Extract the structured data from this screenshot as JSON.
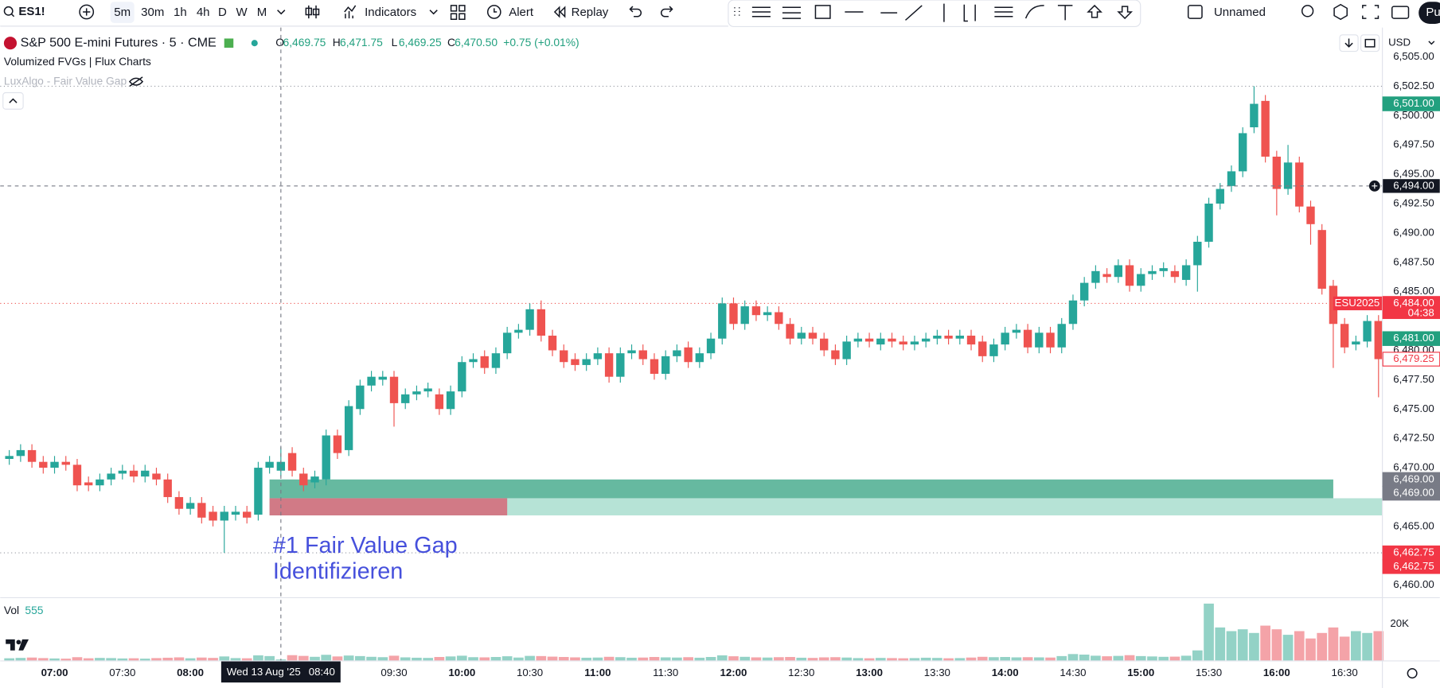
{
  "toolbar": {
    "symbol": "ES1!",
    "intervals": [
      "5m",
      "30m",
      "1h",
      "4h",
      "D",
      "W",
      "M"
    ],
    "indicators": "Indicators",
    "alert": "Alert",
    "replay": "Replay",
    "layout": "Unnamed",
    "publish": "Pu"
  },
  "legend": {
    "title": "S&P 500 E-mini Futures · 5 · CME",
    "ohlc": [
      {
        "key": "O",
        "value": "6,469.75"
      },
      {
        "key": "H",
        "value": "6,471.75"
      },
      {
        "key": "L",
        "value": "6,469.25"
      },
      {
        "key": "C",
        "value": "6,470.50"
      }
    ],
    "change": "+0.75 (+0.01%)",
    "indicators": [
      "Volumized FVGs | Flux Charts",
      "LuxAlgo - Fair Value Gap"
    ]
  },
  "currency": "USD",
  "chart_data": {
    "type": "candlestick",
    "up_color": "#26a69a",
    "down_color": "#ef5350",
    "grid": false,
    "xlim": [
      -0.8,
      121.3
    ],
    "xticks": [
      {
        "value": 4,
        "label": "07:00",
        "major": true
      },
      {
        "value": 10,
        "label": "07:30"
      },
      {
        "value": 16,
        "label": "08:00",
        "major": true
      },
      {
        "value": 34,
        "label": "09:30"
      },
      {
        "value": 40,
        "label": "10:00",
        "major": true
      },
      {
        "value": 46,
        "label": "10:30"
      },
      {
        "value": 52,
        "label": "11:00",
        "major": true
      },
      {
        "value": 58,
        "label": "11:30"
      },
      {
        "value": 64,
        "label": "12:00",
        "major": true
      },
      {
        "value": 70,
        "label": "12:30"
      },
      {
        "value": 76,
        "label": "13:00",
        "major": true
      },
      {
        "value": 82,
        "label": "13:30"
      },
      {
        "value": 88,
        "label": "14:00",
        "major": true
      },
      {
        "value": 94,
        "label": "14:30"
      },
      {
        "value": 100,
        "label": "15:00",
        "major": true
      },
      {
        "value": 106,
        "label": "15:30"
      },
      {
        "value": 112,
        "label": "16:00",
        "major": true
      },
      {
        "value": 118,
        "label": "16:30"
      }
    ],
    "ylim": [
      6459.05,
      6507.5
    ],
    "yticks": [
      {
        "value": 6460,
        "label": "6,460.00"
      },
      {
        "value": 6465,
        "label": "6,465.00"
      },
      {
        "value": 6470,
        "label": "6,470.00"
      },
      {
        "value": 6472.5,
        "label": "6,472.50"
      },
      {
        "value": 6475,
        "label": "6,475.00"
      },
      {
        "value": 6477.5,
        "label": "6,477.50"
      },
      {
        "value": 6480,
        "label": "6,480.00"
      },
      {
        "value": 6485,
        "label": "6,485.00"
      },
      {
        "value": 6487.5,
        "label": "6,487.50"
      },
      {
        "value": 6490,
        "label": "6,490.00"
      },
      {
        "value": 6492.5,
        "label": "6,492.50"
      },
      {
        "value": 6495,
        "label": "6,495.00"
      },
      {
        "value": 6497.5,
        "label": "6,497.50"
      },
      {
        "value": 6500,
        "label": "6,500.00"
      },
      {
        "value": 6502.5,
        "label": "6,502.50"
      },
      {
        "value": 6505,
        "label": "6,505.00"
      }
    ],
    "open": [
      6470.75,
      6471,
      6471.5,
      6470.5,
      6470,
      6470.5,
      6470.25,
      6468.75,
      6468.5,
      6469,
      6469.5,
      6469.75,
      6469.25,
      6469.5,
      6469,
      6467.5,
      6466.5,
      6467,
      6466.25,
      6465.5,
      6466,
      6466.25,
      6466,
      6470,
      6469.75,
      6471.25,
      6469.5,
      6468.75,
      6469,
      6472.75,
      6471.5,
      6475,
      6477,
      6477.5,
      6477.75,
      6475.5,
      6476.25,
      6476.5,
      6476.25,
      6475,
      6476.5,
      6479,
      6479.5,
      6478.5,
      6479.75,
      6481.5,
      6481.75,
      6483.5,
      6481.25,
      6480,
      6479.25,
      6478.75,
      6479.25,
      6479.75,
      6477.75,
      6479.75,
      6480,
      6479.25,
      6478,
      6479.5,
      6480.25,
      6479,
      6479.75,
      6481,
      6484,
      6482.25,
      6483.75,
      6483,
      6483.25,
      6482.25,
      6481,
      6481.5,
      6481,
      6480,
      6479.25,
      6480.75,
      6481,
      6480.5,
      6481,
      6480.75,
      6480.5,
      6480.75,
      6481,
      6481.25,
      6481,
      6481.25,
      6480.75,
      6479.5,
      6480.5,
      6481.5,
      6481.75,
      6480.25,
      6481.5,
      6480.25,
      6482.25,
      6484.25,
      6485.75,
      6486.5,
      6486.25,
      6487.25,
      6485.5,
      6486.5,
      6486.75,
      6486.75,
      6486,
      6487.25,
      6489.25,
      6492.5,
      6494,
      6495.25,
      6499,
      6501.25,
      6496.5,
      6493.75,
      6496,
      6492.25,
      6490.25,
      6485.5,
      6482.25,
      6480.5,
      6480.75,
      6482.5
    ],
    "high": [
      6471.5,
      6472,
      6472,
      6471,
      6471,
      6471,
      6470.75,
      6469.25,
      6469.5,
      6470,
      6470.25,
      6470.25,
      6470.25,
      6470,
      6469.5,
      6468,
      6467.5,
      6467.5,
      6466.75,
      6466.75,
      6466.75,
      6466.75,
      6470.5,
      6471,
      6471.75,
      6471.75,
      6470,
      6469.75,
      6473.25,
      6473.25,
      6475.75,
      6477.5,
      6478.25,
      6478.25,
      6478.25,
      6476.75,
      6477,
      6477.25,
      6476.75,
      6477,
      6479.5,
      6479.75,
      6480,
      6480.25,
      6482,
      6482.25,
      6484,
      6484.25,
      6481.75,
      6480.5,
      6479.75,
      6479.75,
      6480.25,
      6480.25,
      6480.25,
      6480.5,
      6480.5,
      6479.75,
      6480,
      6480.5,
      6480.75,
      6480.25,
      6481.5,
      6484.5,
      6484.5,
      6484.25,
      6484.25,
      6483.75,
      6483.75,
      6482.75,
      6482,
      6482,
      6481.5,
      6480.5,
      6481.25,
      6481.5,
      6481.5,
      6481.5,
      6481.5,
      6481.25,
      6481.25,
      6481.5,
      6481.75,
      6481.75,
      6481.75,
      6481.75,
      6481.25,
      6481,
      6482,
      6482.25,
      6482.25,
      6482,
      6482,
      6482.75,
      6484.75,
      6486.25,
      6487.25,
      6487,
      6487.75,
      6487.75,
      6487,
      6487.25,
      6487.5,
      6487.25,
      6487.75,
      6489.75,
      6493,
      6494.25,
      6495.75,
      6499,
      6502.5,
      6501.75,
      6497,
      6497.5,
      6496.5,
      6492.75,
      6490.75,
      6486,
      6482.75,
      6481.25,
      6483,
      6483
    ],
    "low": [
      6470.25,
      6470.5,
      6470,
      6469.5,
      6469.5,
      6469.75,
      6468,
      6468,
      6468,
      6468.5,
      6469,
      6468.75,
      6468.75,
      6468.5,
      6467,
      6466,
      6466,
      6465.25,
      6465,
      6462.75,
      6465.5,
      6465.25,
      6465.5,
      6469.5,
      6469.25,
      6469.25,
      6468,
      6468.25,
      6468.5,
      6470.75,
      6471,
      6474.5,
      6476.5,
      6477,
      6473.5,
      6475,
      6475.75,
      6476,
      6474.5,
      6474.5,
      6476,
      6478.5,
      6478,
      6478,
      6479.25,
      6481,
      6481.25,
      6480.75,
      6479.5,
      6478.5,
      6478.25,
      6478.25,
      6478.75,
      6477.25,
      6477.25,
      6479.25,
      6478.75,
      6477.5,
      6477.5,
      6479,
      6478.5,
      6478.5,
      6479.25,
      6480.5,
      6481.75,
      6481.75,
      6482.5,
      6482.5,
      6481.75,
      6480.5,
      6480.5,
      6480.5,
      6479.5,
      6478.75,
      6478.75,
      6480.25,
      6480.25,
      6480,
      6480.25,
      6480,
      6480,
      6480.25,
      6480.5,
      6480.5,
      6480.5,
      6480,
      6479,
      6479,
      6480,
      6481,
      6479.75,
      6479.75,
      6479.75,
      6479.75,
      6481.75,
      6483.75,
      6485.25,
      6485.75,
      6485.75,
      6485,
      6485,
      6486,
      6486.25,
      6485.75,
      6485.5,
      6485,
      6488.75,
      6492,
      6493.5,
      6494.75,
      6498.5,
      6496,
      6491.5,
      6493.25,
      6491.75,
      6489,
      6484.75,
      6478.5,
      6479.75,
      6480,
      6480.25,
      6476
    ],
    "close": [
      6471,
      6471.5,
      6470.5,
      6470,
      6470.5,
      6470.25,
      6468.5,
      6468.5,
      6469,
      6469.5,
      6469.75,
      6469.25,
      6469.75,
      6469,
      6467.5,
      6466.5,
      6467,
      6465.75,
      6465.5,
      6466.25,
      6466.25,
      6465.75,
      6470,
      6470.5,
      6470.5,
      6469.75,
      6468.5,
      6469.25,
      6472.75,
      6471.25,
      6475.25,
      6477,
      6477.75,
      6477.75,
      6475.5,
      6476.25,
      6476.5,
      6476.75,
      6475,
      6476.5,
      6479,
      6479.25,
      6478.5,
      6479.75,
      6481.5,
      6481.75,
      6483.5,
      6481.25,
      6480,
      6479,
      6478.75,
      6479.25,
      6479.75,
      6477.75,
      6479.75,
      6480,
      6479.25,
      6478,
      6479.5,
      6480,
      6479,
      6479.75,
      6481,
      6484,
      6482.25,
      6483.75,
      6483,
      6483.25,
      6482.25,
      6481,
      6481.5,
      6481,
      6480,
      6479.25,
      6480.75,
      6481,
      6480.75,
      6481,
      6480.75,
      6480.5,
      6480.75,
      6481,
      6481.25,
      6481,
      6481.25,
      6480.5,
      6479.5,
      6480.5,
      6481.5,
      6481.75,
      6480.25,
      6481.5,
      6480.25,
      6482.25,
      6484.25,
      6485.75,
      6486.75,
      6486.25,
      6487.25,
      6485.5,
      6486.5,
      6486.75,
      6487,
      6486.25,
      6487.25,
      6489.25,
      6492.5,
      6493.75,
      6495.25,
      6498.5,
      6501,
      6496.5,
      6493.75,
      6496,
      6492.25,
      6490.75,
      6485.25,
      6482.25,
      6480.25,
      6480.75,
      6482.5,
      6479.25
    ],
    "zones": [
      {
        "top": 6467.4,
        "bottom": 6465.94,
        "start": 23,
        "extend": true,
        "color": "#b6e3d6"
      },
      {
        "top": 6469,
        "bottom": 6467.4,
        "start": 23,
        "end": 117,
        "color": "#66b9a0"
      },
      {
        "top": 6467.4,
        "bottom": 6465.94,
        "start": 23,
        "end": 44,
        "color": "#d17a86"
      }
    ],
    "levels": [
      {
        "value": 6502.5,
        "color": "#9598a1",
        "dash": "1 3"
      },
      {
        "value": 6484,
        "color": "#ef5350",
        "dash": "1 3"
      },
      {
        "value": 6462.75,
        "color": "#9598a1",
        "dash": "1 3"
      }
    ],
    "price_labels": [
      {
        "value": 6501,
        "label": "6,501.00",
        "color": "#22a07f"
      },
      {
        "value": 6484,
        "label": "6,484.00",
        "color": "#f23645",
        "tag": "ESU2025",
        "sub": "04:38"
      },
      {
        "value": 6481,
        "label": "6,481.00",
        "color": "#22a07f"
      },
      {
        "value": 6479.25,
        "label": "6,479.25",
        "color": "#f23645",
        "outline": true
      },
      {
        "value": 6469,
        "label": "6,469.00",
        "color": "#787b86"
      },
      {
        "value": 6469,
        "label": "6,469.00",
        "color": "#787b86"
      },
      {
        "value": 6462.75,
        "label": "6,462.75",
        "color": "#f23645"
      },
      {
        "value": 6462.75,
        "label": "6,462.75",
        "color": "#f23645"
      }
    ],
    "crosshair": {
      "x": 24,
      "y": 6494,
      "y_label": "6,494.00",
      "date": "Wed 13 Aug '25",
      "time": "08:40"
    },
    "annotation": [
      "#1 Fair Value Gap",
      "Identifizieren"
    ],
    "volume": {
      "label": "Vol",
      "last": "555",
      "up_color": "#93d2c6",
      "down_color": "#f4a3a8",
      "ylim": [
        0,
        34000
      ],
      "yticks": [
        {
          "value": 20000,
          "label": "20K"
        }
      ],
      "values": [
        1200,
        1400,
        1600,
        1300,
        1100,
        1000,
        1800,
        1200,
        1400,
        1300,
        1100,
        1200,
        1000,
        1300,
        1500,
        1700,
        1200,
        1600,
        1400,
        2200,
        1300,
        1200,
        2800,
        2400,
        555,
        2900,
        2500,
        2000,
        3100,
        2200,
        2700,
        2400,
        2000,
        1800,
        2600,
        1700,
        1500,
        1400,
        1900,
        2200,
        2600,
        1800,
        1700,
        1900,
        2300,
        1600,
        2500,
        2400,
        2100,
        1900,
        1700,
        1500,
        1600,
        2000,
        1800,
        1500,
        1600,
        1900,
        1700,
        1600,
        1800,
        1500,
        1900,
        2800,
        2300,
        2000,
        1700,
        1600,
        1800,
        1900,
        1500,
        1400,
        1700,
        1800,
        1600,
        1300,
        1200,
        1400,
        1300,
        1200,
        1300,
        1500,
        1400,
        1200,
        1300,
        1600,
        2000,
        1800,
        1900,
        1700,
        1800,
        1700,
        1600,
        2400,
        3500,
        3200,
        2600,
        2300,
        2500,
        2900,
        2400,
        2200,
        2000,
        2100,
        2600,
        5500,
        31000,
        18000,
        16000,
        17000,
        15000,
        19000,
        17000,
        14000,
        16000,
        12000,
        15000,
        18000,
        13000,
        16000,
        15000,
        16000
      ]
    }
  }
}
